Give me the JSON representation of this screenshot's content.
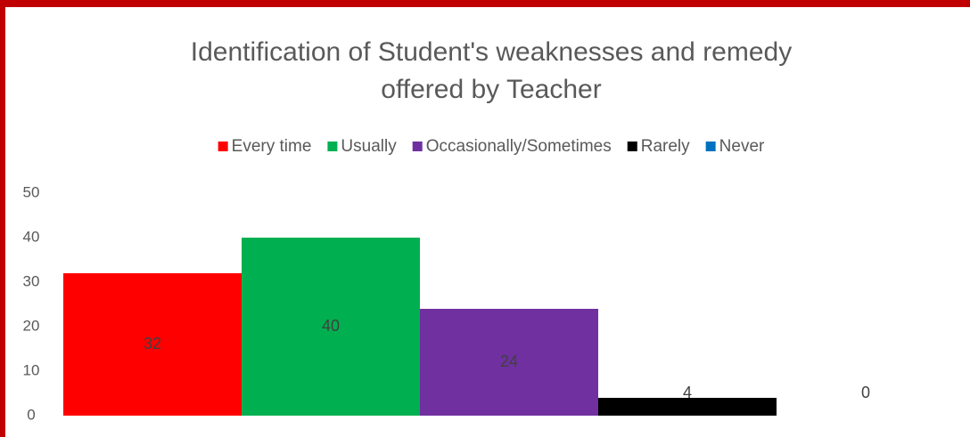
{
  "chart_data": {
    "type": "bar",
    "title": [
      "Identification of Student's weaknesses and remedy",
      "offered by Teacher"
    ],
    "categories": [
      null
    ],
    "series": [
      {
        "name": "Every time",
        "color": "#ff0000",
        "values": [
          32
        ]
      },
      {
        "name": "Usually",
        "color": "#00b050",
        "values": [
          40
        ]
      },
      {
        "name": "Occasionally/Sometimes",
        "color": "#7030a0",
        "values": [
          24
        ]
      },
      {
        "name": "Rarely",
        "color": "#000000",
        "values": [
          4
        ]
      },
      {
        "name": "Never",
        "color": "#0070c0",
        "values": [
          0
        ]
      }
    ],
    "ylim": [
      0,
      50
    ],
    "yticks": [
      0,
      10,
      20,
      30,
      40,
      50
    ],
    "grid": false,
    "legend": "top"
  }
}
